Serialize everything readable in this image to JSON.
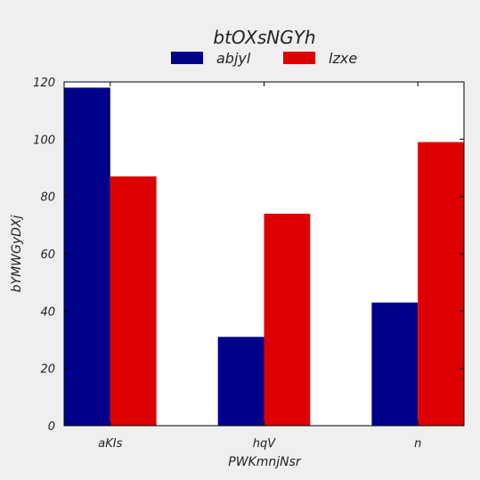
{
  "chart_data": {
    "type": "bar",
    "title": "btOXsNGYh",
    "xlabel": "PWKmnjNsr",
    "ylabel": "bYMWGyDXj",
    "categories": [
      "aKIs",
      "hqV",
      "n"
    ],
    "series": [
      {
        "name": "abjyl",
        "values": [
          118,
          31,
          43
        ],
        "color": "#00008b"
      },
      {
        "name": "lzxe",
        "values": [
          87,
          74,
          99
        ],
        "color": "#dd0000"
      }
    ],
    "ylim": [
      0,
      120
    ],
    "yticks": [
      "0",
      "20",
      "40",
      "60",
      "80",
      "100",
      "120"
    ],
    "legend_position": "top-center",
    "grid": false
  }
}
